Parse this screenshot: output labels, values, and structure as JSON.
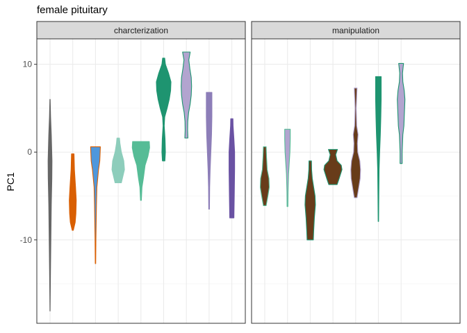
{
  "chart_data": {
    "type": "violin",
    "title": "female pituitary",
    "xlabel": "",
    "ylabel": "PC1",
    "ylim": [
      -19.5,
      12.9
    ],
    "yticks": [
      -10,
      0,
      10
    ],
    "yticklabels": [
      "-10",
      "0",
      "10"
    ],
    "grid": true,
    "legend": "none",
    "facets": [
      {
        "name": "charcterization",
        "violins": [
          {
            "fill": "#666666",
            "outline": "#666666",
            "profile": [
              [
                -18.1,
                0.1
              ],
              [
                -14,
                0.6
              ],
              [
                -10,
                1.2
              ],
              [
                -6,
                1.8
              ],
              [
                -3,
                2.6
              ],
              [
                -1,
                2.8
              ],
              [
                2,
                1.8
              ],
              [
                4,
                0.8
              ],
              [
                6.0,
                0.2
              ]
            ]
          },
          {
            "fill": "#D95F02",
            "outline": "#D95F02",
            "profile": [
              [
                -8.9,
                0.8
              ],
              [
                -8,
                3.5
              ],
              [
                -7,
                4.5
              ],
              [
                -5.5,
                5.0
              ],
              [
                -4,
                4.0
              ],
              [
                -2,
                2.4
              ],
              [
                -0.2,
                1.8
              ]
            ]
          },
          {
            "fill": "#4E97DC",
            "outline": "#D95F02",
            "profile": [
              [
                -12.7,
                0.3
              ],
              [
                -10,
                0.6
              ],
              [
                -6,
                1.4
              ],
              [
                -4,
                2.0
              ],
              [
                -2,
                4.4
              ],
              [
                -1,
                6.2
              ],
              [
                0.5,
                7.0
              ],
              [
                0.6,
                7.0
              ]
            ]
          },
          {
            "fill": "#8DCDBB",
            "outline": "#8DCDBB",
            "profile": [
              [
                -3.5,
                4.5
              ],
              [
                -3,
                6.0
              ],
              [
                -2,
                9.0
              ],
              [
                -1,
                8.0
              ],
              [
                0,
                4.5
              ],
              [
                1,
                2.5
              ],
              [
                1.6,
                1.8
              ]
            ]
          },
          {
            "fill": "#56BC96",
            "outline": "#56BC96",
            "profile": [
              [
                -5.5,
                0.6
              ],
              [
                -4,
                1.5
              ],
              [
                -3,
                3.5
              ],
              [
                -1.5,
                6.0
              ],
              [
                -0.5,
                10.0
              ],
              [
                0.5,
                12.5
              ],
              [
                1.2,
                12.0
              ]
            ]
          },
          {
            "fill": "#1E9470",
            "outline": "#1E9470",
            "profile": [
              [
                -1.0,
                1.8
              ],
              [
                0,
                2.5
              ],
              [
                1.5,
                2.0
              ],
              [
                3,
                0.8
              ],
              [
                4,
                1.5
              ],
              [
                5,
                5.0
              ],
              [
                6,
                8.0
              ],
              [
                7,
                10.0
              ],
              [
                8,
                10.5
              ],
              [
                9,
                7.0
              ],
              [
                10,
                2.5
              ],
              [
                10.7,
                1.5
              ]
            ]
          },
          {
            "fill": "#B2A4CF",
            "outline": "#1E9470",
            "profile": [
              [
                1.6,
                2.2
              ],
              [
                2.5,
                1.8
              ],
              [
                3.5,
                2.0
              ],
              [
                4.5,
                3.2
              ],
              [
                5.5,
                5.5
              ],
              [
                6.5,
                7.0
              ],
              [
                7.5,
                7.5
              ],
              [
                8.5,
                7.0
              ],
              [
                9.5,
                5.0
              ],
              [
                10.5,
                3.5
              ],
              [
                11.4,
                5.5
              ]
            ]
          },
          {
            "fill": "#8D7EB8",
            "outline": "#8D7EB8",
            "profile": [
              [
                -6.5,
                0.5
              ],
              [
                -4,
                0.8
              ],
              [
                -2,
                1.5
              ],
              [
                0,
                2.5
              ],
              [
                2,
                3.5
              ],
              [
                4,
                4.0
              ],
              [
                6,
                4.0
              ],
              [
                6.8,
                4.0
              ]
            ]
          },
          {
            "fill": "#6A52A3",
            "outline": "#6A52A3",
            "profile": [
              [
                -7.5,
                3.0
              ],
              [
                -5,
                3.5
              ],
              [
                -2,
                4.0
              ],
              [
                0,
                4.0
              ],
              [
                1.5,
                3.0
              ],
              [
                3,
                1.8
              ],
              [
                3.8,
                1.6
              ]
            ]
          }
        ]
      },
      {
        "name": "manipulation",
        "violins": [
          {
            "fill": "#683C1A",
            "outline": "#56BC96",
            "profile": [
              [
                -6.1,
                2.0
              ],
              [
                -5,
                4.5
              ],
              [
                -4,
                6.5
              ],
              [
                -3,
                6.0
              ],
              [
                -2,
                3.5
              ],
              [
                -0.5,
                2.5
              ],
              [
                0.6,
                2.0
              ]
            ]
          },
          {
            "fill": "#B2A4CF",
            "outline": "#56BC96",
            "profile": [
              [
                -6.2,
                0.6
              ],
              [
                -4.5,
                0.8
              ],
              [
                -2.5,
                1.5
              ],
              [
                -1.5,
                2.3
              ],
              [
                0,
                3.5
              ],
              [
                1.5,
                4.0
              ],
              [
                2.6,
                4.0
              ]
            ]
          },
          {
            "fill": "#683C1A",
            "outline": "#1E9470",
            "profile": [
              [
                -10.0,
                4.5
              ],
              [
                -9,
                5.0
              ],
              [
                -7.5,
                6.0
              ],
              [
                -6,
                7.5
              ],
              [
                -5,
                7.0
              ],
              [
                -4,
                5.0
              ],
              [
                -3,
                3.0
              ],
              [
                -2,
                2.0
              ],
              [
                -1.0,
                1.8
              ]
            ]
          },
          {
            "fill": "#683C1A",
            "outline": "#1E9470",
            "profile": [
              [
                -3.7,
                6.0
              ],
              [
                -3,
                9.0
              ],
              [
                -2,
                13.0
              ],
              [
                -1.5,
                12.0
              ],
              [
                -1,
                6.0
              ],
              [
                -0.3,
                4.0
              ],
              [
                0.3,
                6.5
              ]
            ]
          },
          {
            "fill": "#683C1A",
            "outline": "#B2A4CF",
            "profile": [
              [
                -5.2,
                2.0
              ],
              [
                -4,
                4.5
              ],
              [
                -3,
                6.5
              ],
              [
                -2,
                7.0
              ],
              [
                -1,
                6.0
              ],
              [
                0,
                3.0
              ],
              [
                1,
                2.5
              ],
              [
                2,
                3.5
              ],
              [
                3,
                1.5
              ],
              [
                5,
                0.8
              ],
              [
                7.3,
                2.0
              ]
            ]
          },
          {
            "fill": "#1E9470",
            "outline": "#1E9470",
            "profile": [
              [
                -7.9,
                0.3
              ],
              [
                -5,
                0.6
              ],
              [
                -2,
                1.0
              ],
              [
                0,
                1.8
              ],
              [
                2,
                2.8
              ],
              [
                4,
                3.5
              ],
              [
                6,
                4.0
              ],
              [
                8.6,
                4.0
              ]
            ]
          },
          {
            "fill": "#B2A4CF",
            "outline": "#1E9470",
            "profile": [
              [
                -1.3,
                1.5
              ],
              [
                0,
                1.5
              ],
              [
                2,
                2.5
              ],
              [
                3,
                4.0
              ],
              [
                4,
                4.5
              ],
              [
                5,
                5.0
              ],
              [
                6,
                5.5
              ],
              [
                7,
                4.5
              ],
              [
                8,
                2.5
              ],
              [
                9,
                2.0
              ],
              [
                10.1,
                3.5
              ]
            ]
          }
        ]
      }
    ]
  }
}
